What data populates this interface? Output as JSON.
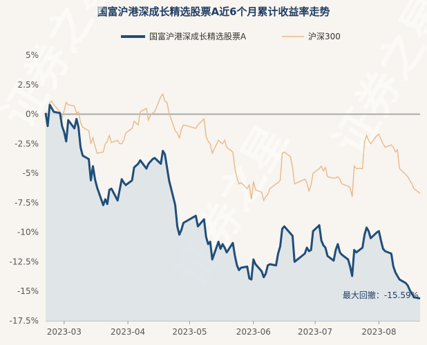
{
  "chart_data": {
    "type": "line",
    "title": "国富沪港深成长精选股票A近6个月累计收益率走势",
    "xlabel": "",
    "ylabel": "",
    "ylim": [
      -17.5,
      5
    ],
    "y_ticks": [
      "5%",
      "2.5%",
      "0%",
      "-2.5%",
      "-5%",
      "-7.5%",
      "-10%",
      "-12.5%",
      "-15%",
      "-17.5%"
    ],
    "y_tick_values": [
      5,
      2.5,
      0,
      -2.5,
      -5,
      -7.5,
      -10,
      -12.5,
      -15,
      -17.5
    ],
    "x_ticks": [
      "2023-03",
      "2023-04",
      "2023-05",
      "2023-06",
      "2023-07",
      "2023-08"
    ],
    "x_tick_dates": [
      "2023-03-01",
      "2023-04-01",
      "2023-05-01",
      "2023-06-01",
      "2023-07-01",
      "2023-08-01"
    ],
    "x_range": [
      "2023-02-20",
      "2023-08-21"
    ],
    "grid": "horizontal",
    "legend_position": "top",
    "annotation": "最大回撤：-15.59%",
    "colors": {
      "fund": "#1f4e79",
      "index": "#e8b98a",
      "fill": "#dde3e7",
      "zero_line": "#aaaaaa"
    },
    "series": [
      {
        "name": "国富沪港深成长精选股票A",
        "style": "thick",
        "points": [
          [
            "2023-02-20",
            0.1
          ],
          [
            "2023-02-21",
            -1.0
          ],
          [
            "2023-02-22",
            0.8
          ],
          [
            "2023-02-23",
            0.5
          ],
          [
            "2023-02-24",
            0.2
          ],
          [
            "2023-02-27",
            0.1
          ],
          [
            "2023-02-28",
            -1.0
          ],
          [
            "2023-03-01",
            -1.5
          ],
          [
            "2023-03-02",
            -2.3
          ],
          [
            "2023-03-03",
            -0.5
          ],
          [
            "2023-03-06",
            -1.2
          ],
          [
            "2023-03-07",
            -0.4
          ],
          [
            "2023-03-08",
            -1.1
          ],
          [
            "2023-03-09",
            -2.8
          ],
          [
            "2023-03-10",
            -3.5
          ],
          [
            "2023-03-13",
            -3.8
          ],
          [
            "2023-03-14",
            -5.6
          ],
          [
            "2023-03-15",
            -4.4
          ],
          [
            "2023-03-16",
            -5.5
          ],
          [
            "2023-03-17",
            -6.2
          ],
          [
            "2023-03-20",
            -7.7
          ],
          [
            "2023-03-21",
            -7.2
          ],
          [
            "2023-03-22",
            -7.6
          ],
          [
            "2023-03-23",
            -6.4
          ],
          [
            "2023-03-24",
            -6.3
          ],
          [
            "2023-03-27",
            -7.3
          ],
          [
            "2023-03-28",
            -6.4
          ],
          [
            "2023-03-29",
            -5.5
          ],
          [
            "2023-03-30",
            -5.8
          ],
          [
            "2023-03-31",
            -6.0
          ],
          [
            "2023-04-03",
            -5.6
          ],
          [
            "2023-04-04",
            -4.5
          ],
          [
            "2023-04-06",
            -4.2
          ],
          [
            "2023-04-07",
            -3.9
          ],
          [
            "2023-04-10",
            -4.6
          ],
          [
            "2023-04-11",
            -4.2
          ],
          [
            "2023-04-12",
            -4.0
          ],
          [
            "2023-04-13",
            -3.8
          ],
          [
            "2023-04-14",
            -3.7
          ],
          [
            "2023-04-17",
            -4.2
          ],
          [
            "2023-04-18",
            -3.1
          ],
          [
            "2023-04-19",
            -3.4
          ],
          [
            "2023-04-20",
            -4.5
          ],
          [
            "2023-04-21",
            -5.6
          ],
          [
            "2023-04-24",
            -7.7
          ],
          [
            "2023-04-25",
            -9.5
          ],
          [
            "2023-04-26",
            -10.2
          ],
          [
            "2023-04-27",
            -9.8
          ],
          [
            "2023-04-28",
            -9.2
          ],
          [
            "2023-05-04",
            -8.6
          ],
          [
            "2023-05-05",
            -9.5
          ],
          [
            "2023-05-08",
            -8.9
          ],
          [
            "2023-05-09",
            -10.4
          ],
          [
            "2023-05-10",
            -11.0
          ],
          [
            "2023-05-11",
            -10.8
          ],
          [
            "2023-05-12",
            -12.3
          ],
          [
            "2023-05-15",
            -10.8
          ],
          [
            "2023-05-16",
            -11.4
          ],
          [
            "2023-05-17",
            -11.0
          ],
          [
            "2023-05-18",
            -11.3
          ],
          [
            "2023-05-19",
            -11.7
          ],
          [
            "2023-05-22",
            -10.9
          ],
          [
            "2023-05-23",
            -12.0
          ],
          [
            "2023-05-24",
            -12.8
          ],
          [
            "2023-05-25",
            -13.2
          ],
          [
            "2023-05-26",
            -13.0
          ],
          [
            "2023-05-29",
            -12.9
          ],
          [
            "2023-05-30",
            -13.9
          ],
          [
            "2023-05-31",
            -14.0
          ],
          [
            "2023-06-01",
            -12.3
          ],
          [
            "2023-06-02",
            -12.7
          ],
          [
            "2023-06-05",
            -13.3
          ],
          [
            "2023-06-06",
            -13.8
          ],
          [
            "2023-06-07",
            -13.5
          ],
          [
            "2023-06-08",
            -12.8
          ],
          [
            "2023-06-09",
            -12.7
          ],
          [
            "2023-06-12",
            -12.8
          ],
          [
            "2023-06-13",
            -11.8
          ],
          [
            "2023-06-14",
            -11.2
          ],
          [
            "2023-06-15",
            -9.7
          ],
          [
            "2023-06-16",
            -9.5
          ],
          [
            "2023-06-19",
            -10.1
          ],
          [
            "2023-06-20",
            -10.3
          ],
          [
            "2023-06-21",
            -12.5
          ],
          [
            "2023-06-26",
            -11.8
          ],
          [
            "2023-06-27",
            -11.3
          ],
          [
            "2023-06-28",
            -11.6
          ],
          [
            "2023-06-29",
            -11.5
          ],
          [
            "2023-06-30",
            -9.9
          ],
          [
            "2023-07-03",
            -9.4
          ],
          [
            "2023-07-04",
            -10.7
          ],
          [
            "2023-07-05",
            -11.1
          ],
          [
            "2023-07-06",
            -11.3
          ],
          [
            "2023-07-07",
            -12.0
          ],
          [
            "2023-07-10",
            -12.4
          ],
          [
            "2023-07-11",
            -11.5
          ],
          [
            "2023-07-12",
            -11.0
          ],
          [
            "2023-07-13",
            -11.7
          ],
          [
            "2023-07-14",
            -11.9
          ],
          [
            "2023-07-17",
            -12.3
          ],
          [
            "2023-07-18",
            -12.9
          ],
          [
            "2023-07-19",
            -13.7
          ],
          [
            "2023-07-20",
            -11.5
          ],
          [
            "2023-07-21",
            -11.7
          ],
          [
            "2023-07-24",
            -11.3
          ],
          [
            "2023-07-25",
            -10.2
          ],
          [
            "2023-07-26",
            -9.6
          ],
          [
            "2023-07-27",
            -9.9
          ],
          [
            "2023-07-28",
            -10.5
          ],
          [
            "2023-07-31",
            -10.0
          ],
          [
            "2023-08-01",
            -9.9
          ],
          [
            "2023-08-02",
            -10.7
          ],
          [
            "2023-08-03",
            -11.4
          ],
          [
            "2023-08-04",
            -11.6
          ],
          [
            "2023-08-07",
            -11.8
          ],
          [
            "2023-08-08",
            -12.9
          ],
          [
            "2023-08-09",
            -13.4
          ],
          [
            "2023-08-10",
            -13.7
          ],
          [
            "2023-08-11",
            -14.0
          ],
          [
            "2023-08-14",
            -14.3
          ],
          [
            "2023-08-15",
            -14.5
          ],
          [
            "2023-08-16",
            -14.9
          ],
          [
            "2023-08-17",
            -15.2
          ],
          [
            "2023-08-18",
            -15.5
          ],
          [
            "2023-08-21",
            -15.6
          ]
        ]
      },
      {
        "name": "沪深300",
        "style": "thin",
        "points": [
          [
            "2023-02-20",
            0.2
          ],
          [
            "2023-02-21",
            -0.5
          ],
          [
            "2023-02-22",
            1.0
          ],
          [
            "2023-02-23",
            1.1
          ],
          [
            "2023-02-24",
            0.8
          ],
          [
            "2023-02-27",
            0.2
          ],
          [
            "2023-02-28",
            -0.3
          ],
          [
            "2023-03-01",
            0.3
          ],
          [
            "2023-03-02",
            1.0
          ],
          [
            "2023-03-03",
            0.8
          ],
          [
            "2023-03-06",
            0.7
          ],
          [
            "2023-03-07",
            0.1
          ],
          [
            "2023-03-08",
            0.2
          ],
          [
            "2023-03-09",
            -0.7
          ],
          [
            "2023-03-10",
            -1.1
          ],
          [
            "2023-03-13",
            -1.4
          ],
          [
            "2023-03-14",
            -2.5
          ],
          [
            "2023-03-15",
            -2.0
          ],
          [
            "2023-03-16",
            -2.7
          ],
          [
            "2023-03-17",
            -3.3
          ],
          [
            "2023-03-20",
            -3.2
          ],
          [
            "2023-03-21",
            -2.5
          ],
          [
            "2023-03-22",
            -2.3
          ],
          [
            "2023-03-23",
            -1.8
          ],
          [
            "2023-03-24",
            -2.4
          ],
          [
            "2023-03-27",
            -2.2
          ],
          [
            "2023-03-28",
            -2.5
          ],
          [
            "2023-03-29",
            -2.5
          ],
          [
            "2023-03-30",
            -2.2
          ],
          [
            "2023-03-31",
            -1.6
          ],
          [
            "2023-04-03",
            -1.2
          ],
          [
            "2023-04-04",
            -0.6
          ],
          [
            "2023-04-06",
            -0.9
          ],
          [
            "2023-04-07",
            0.2
          ],
          [
            "2023-04-10",
            0.5
          ],
          [
            "2023-04-11",
            -0.5
          ],
          [
            "2023-04-12",
            -0.1
          ],
          [
            "2023-04-13",
            0.1
          ],
          [
            "2023-04-14",
            0.2
          ],
          [
            "2023-04-17",
            1.5
          ],
          [
            "2023-04-18",
            1.7
          ],
          [
            "2023-04-19",
            1.1
          ],
          [
            "2023-04-20",
            1.0
          ],
          [
            "2023-04-21",
            0.1
          ],
          [
            "2023-04-24",
            -1.4
          ],
          [
            "2023-04-25",
            -1.6
          ],
          [
            "2023-04-26",
            -2.0
          ],
          [
            "2023-04-27",
            -1.3
          ],
          [
            "2023-04-28",
            -0.9
          ],
          [
            "2023-05-04",
            -1.2
          ],
          [
            "2023-05-05",
            -0.9
          ],
          [
            "2023-05-08",
            -0.4
          ],
          [
            "2023-05-09",
            -1.9
          ],
          [
            "2023-05-10",
            -2.3
          ],
          [
            "2023-05-11",
            -2.5
          ],
          [
            "2023-05-12",
            -3.3
          ],
          [
            "2023-05-15",
            -2.2
          ],
          [
            "2023-05-16",
            -2.4
          ],
          [
            "2023-05-17",
            -2.5
          ],
          [
            "2023-05-18",
            -2.2
          ],
          [
            "2023-05-19",
            -2.8
          ],
          [
            "2023-05-22",
            -3.2
          ],
          [
            "2023-05-23",
            -4.6
          ],
          [
            "2023-05-24",
            -5.4
          ],
          [
            "2023-05-25",
            -5.9
          ],
          [
            "2023-05-26",
            -5.8
          ],
          [
            "2023-05-29",
            -6.3
          ],
          [
            "2023-05-30",
            -6.0
          ],
          [
            "2023-05-31",
            -7.2
          ],
          [
            "2023-06-01",
            -5.7
          ],
          [
            "2023-06-02",
            -6.4
          ],
          [
            "2023-06-05",
            -6.6
          ],
          [
            "2023-06-06",
            -7.3
          ],
          [
            "2023-06-07",
            -7.0
          ],
          [
            "2023-06-08",
            -6.8
          ],
          [
            "2023-06-09",
            -6.3
          ],
          [
            "2023-06-12",
            -5.9
          ],
          [
            "2023-06-13",
            -5.8
          ],
          [
            "2023-06-14",
            -5.6
          ],
          [
            "2023-06-15",
            -3.3
          ],
          [
            "2023-06-16",
            -3.2
          ],
          [
            "2023-06-19",
            -3.6
          ],
          [
            "2023-06-20",
            -4.5
          ],
          [
            "2023-06-21",
            -5.9
          ],
          [
            "2023-06-26",
            -5.5
          ],
          [
            "2023-06-27",
            -5.8
          ],
          [
            "2023-06-28",
            -6.5
          ],
          [
            "2023-06-29",
            -6.0
          ],
          [
            "2023-06-30",
            -5.0
          ],
          [
            "2023-07-03",
            -4.6
          ],
          [
            "2023-07-04",
            -4.4
          ],
          [
            "2023-07-05",
            -4.8
          ],
          [
            "2023-07-06",
            -4.5
          ],
          [
            "2023-07-07",
            -5.3
          ],
          [
            "2023-07-10",
            -5.4
          ],
          [
            "2023-07-11",
            -5.4
          ],
          [
            "2023-07-12",
            -5.3
          ],
          [
            "2023-07-13",
            -5.5
          ],
          [
            "2023-07-14",
            -5.9
          ],
          [
            "2023-07-17",
            -6.1
          ],
          [
            "2023-07-18",
            -6.2
          ],
          [
            "2023-07-19",
            -7.0
          ],
          [
            "2023-07-20",
            -4.4
          ],
          [
            "2023-07-21",
            -4.6
          ],
          [
            "2023-07-24",
            -4.6
          ],
          [
            "2023-07-25",
            -2.3
          ],
          [
            "2023-07-26",
            -1.8
          ],
          [
            "2023-07-27",
            -2.2
          ],
          [
            "2023-07-28",
            -2.5
          ],
          [
            "2023-07-31",
            -1.8
          ],
          [
            "2023-08-01",
            -1.7
          ],
          [
            "2023-08-02",
            -2.1
          ],
          [
            "2023-08-03",
            -2.5
          ],
          [
            "2023-08-04",
            -2.8
          ],
          [
            "2023-08-07",
            -2.6
          ],
          [
            "2023-08-08",
            -2.8
          ],
          [
            "2023-08-09",
            -3.2
          ],
          [
            "2023-08-10",
            -3.0
          ],
          [
            "2023-08-11",
            -4.6
          ],
          [
            "2023-08-14",
            -5.1
          ],
          [
            "2023-08-15",
            -5.3
          ],
          [
            "2023-08-16",
            -5.6
          ],
          [
            "2023-08-17",
            -5.9
          ],
          [
            "2023-08-18",
            -6.3
          ],
          [
            "2023-08-21",
            -6.7
          ]
        ]
      }
    ],
    "watermark": "证券之星"
  }
}
